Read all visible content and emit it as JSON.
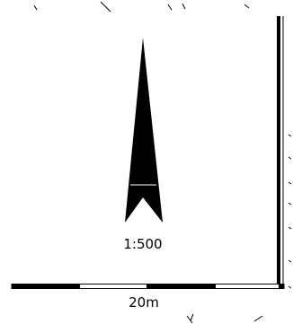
{
  "drawing": {
    "scale_label": "1:500",
    "scale_bar_label": "20m",
    "ink_color": "#000000",
    "paper_color": "#ffffff"
  },
  "north_arrow": {
    "icon": "north-arrow-icon"
  }
}
